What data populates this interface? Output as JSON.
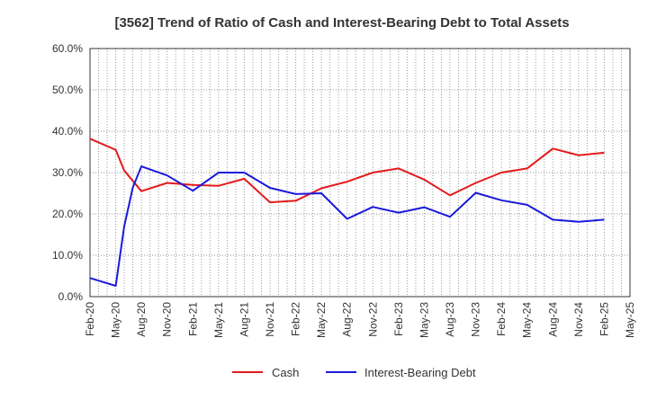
{
  "chart_data": {
    "type": "line",
    "title": "[3562]  Trend of Ratio of Cash and Interest-Bearing Debt to Total Assets",
    "xlabel": "",
    "ylabel": "",
    "x_ticks": [
      "Feb-20",
      "May-20",
      "Aug-20",
      "Nov-20",
      "Feb-21",
      "May-21",
      "Aug-21",
      "Nov-21",
      "Feb-22",
      "May-22",
      "Aug-22",
      "Nov-22",
      "Feb-23",
      "May-23",
      "Aug-23",
      "Nov-23",
      "Feb-24",
      "May-24",
      "Aug-24",
      "Nov-24",
      "Feb-25",
      "May-25"
    ],
    "y_ticks": [
      "0.0%",
      "10.0%",
      "20.0%",
      "30.0%",
      "40.0%",
      "50.0%",
      "60.0%"
    ],
    "ylim": [
      0,
      60
    ],
    "grid": true,
    "legend_position": "bottom",
    "series": [
      {
        "name": "Cash",
        "color": "#e31a1c",
        "points": [
          {
            "x": 0,
            "y": 38.2
          },
          {
            "x": 1,
            "y": 35.5
          },
          {
            "x": 1.33,
            "y": 30.5
          },
          {
            "x": 2,
            "y": 25.5
          },
          {
            "x": 3,
            "y": 27.5
          },
          {
            "x": 4,
            "y": 27.0
          },
          {
            "x": 5,
            "y": 26.8
          },
          {
            "x": 6,
            "y": 28.5
          },
          {
            "x": 7,
            "y": 22.8
          },
          {
            "x": 8,
            "y": 23.2
          },
          {
            "x": 9,
            "y": 26.2
          },
          {
            "x": 10,
            "y": 27.8
          },
          {
            "x": 11,
            "y": 30.0
          },
          {
            "x": 12,
            "y": 31.0
          },
          {
            "x": 13,
            "y": 28.3
          },
          {
            "x": 14,
            "y": 24.5
          },
          {
            "x": 15,
            "y": 27.5
          },
          {
            "x": 16,
            "y": 30.0
          },
          {
            "x": 17,
            "y": 31.0
          },
          {
            "x": 18,
            "y": 35.8
          },
          {
            "x": 19,
            "y": 34.2
          },
          {
            "x": 20,
            "y": 34.8
          }
        ]
      },
      {
        "name": "Interest-Bearing Debt",
        "color": "#1a1adb",
        "points": [
          {
            "x": 0,
            "y": 4.5
          },
          {
            "x": 1,
            "y": 2.6
          },
          {
            "x": 1.33,
            "y": 17.0
          },
          {
            "x": 1.67,
            "y": 26.5
          },
          {
            "x": 2,
            "y": 31.5
          },
          {
            "x": 3,
            "y": 29.3
          },
          {
            "x": 4,
            "y": 25.6
          },
          {
            "x": 5,
            "y": 30.0
          },
          {
            "x": 6,
            "y": 30.0
          },
          {
            "x": 7,
            "y": 26.3
          },
          {
            "x": 8,
            "y": 24.8
          },
          {
            "x": 9,
            "y": 25.0
          },
          {
            "x": 10,
            "y": 18.8
          },
          {
            "x": 11,
            "y": 21.7
          },
          {
            "x": 12,
            "y": 20.3
          },
          {
            "x": 13,
            "y": 21.6
          },
          {
            "x": 14,
            "y": 19.3
          },
          {
            "x": 15,
            "y": 25.1
          },
          {
            "x": 16,
            "y": 23.3
          },
          {
            "x": 17,
            "y": 22.2
          },
          {
            "x": 18,
            "y": 18.6
          },
          {
            "x": 19,
            "y": 18.1
          },
          {
            "x": 20,
            "y": 18.6
          }
        ]
      }
    ]
  }
}
